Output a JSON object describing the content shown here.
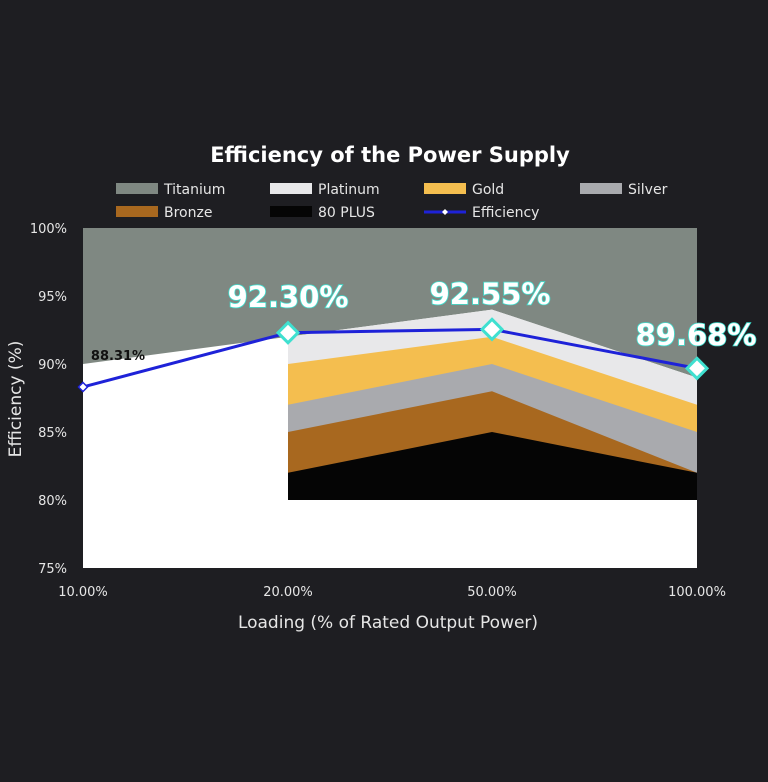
{
  "chart_data": {
    "type": "area",
    "title": "Efficiency of the Power Supply",
    "xlabel": "Loading (% of Rated Output Power)",
    "ylabel": "Efficiency (%)",
    "categories": [
      "10.00%",
      "20.00%",
      "50.00%",
      "100.00%"
    ],
    "yticks": [
      "75%",
      "80%",
      "85%",
      "90%",
      "95%",
      "100%"
    ],
    "ylim": [
      75,
      100
    ],
    "grid": false,
    "legend_position": "top",
    "legend": [
      "Titanium",
      "Platinum",
      "Gold",
      "Silver",
      "Bronze",
      "80 PLUS",
      "Efficiency"
    ],
    "bands": [
      {
        "name": "Titanium",
        "color": "#7f8882",
        "values": [
          100,
          100,
          100,
          100
        ]
      },
      {
        "name": "Platinum",
        "color": "#e8e8ea",
        "values": [
          90,
          92,
          94,
          89
        ]
      },
      {
        "name": "Gold",
        "color": "#f4be4f",
        "values": [
          null,
          90,
          92,
          87
        ]
      },
      {
        "name": "Silver",
        "color": "#a9aaae",
        "values": [
          null,
          87,
          90,
          85
        ]
      },
      {
        "name": "Bronze",
        "color": "#a8681f",
        "values": [
          null,
          85,
          88,
          82
        ]
      },
      {
        "name": "80 PLUS",
        "color": "#050505",
        "values": [
          null,
          82,
          85,
          82
        ]
      }
    ],
    "series": [
      {
        "name": "Efficiency",
        "color": "#1e22d8",
        "values": [
          88.31,
          92.3,
          92.55,
          89.68
        ]
      }
    ],
    "data_labels": [
      "88.31%",
      "92.30%",
      "92.55%",
      "89.68%"
    ]
  }
}
